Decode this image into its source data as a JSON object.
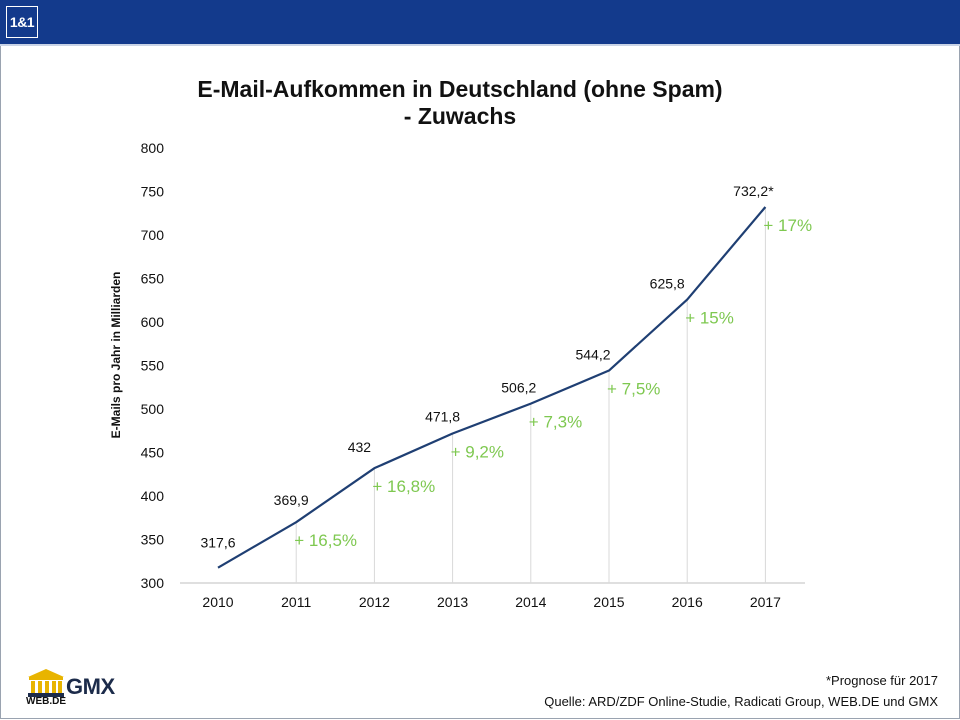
{
  "header": {
    "brand_logo_text": "1&1"
  },
  "chart_data": {
    "type": "line",
    "title": "E-Mail-Aufkommen in Deutschland (ohne Spam)",
    "subtitle": "- Zuwachs",
    "ylabel": "E-Mails pro Jahr in Milliarden",
    "xlabel": "",
    "ylim": [
      300,
      800
    ],
    "yticks": [
      300,
      350,
      400,
      450,
      500,
      550,
      600,
      650,
      700,
      750,
      800
    ],
    "categories": [
      "2010",
      "2011",
      "2012",
      "2013",
      "2014",
      "2015",
      "2016",
      "2017"
    ],
    "series": [
      {
        "values": [
          317.6,
          369.9,
          432,
          471.8,
          506.2,
          544.2,
          625.8,
          732.2
        ],
        "color": "#1f3f73"
      }
    ],
    "data_labels": [
      "317,6",
      "369,9",
      "432",
      "471,8",
      "506,2",
      "544,2",
      "625,8",
      "732,2*"
    ],
    "growth_labels": [
      "",
      "+ 16,5%",
      "+ 16,8%",
      "+ 9,2%",
      "+ 7,3%",
      "+ 7,5%",
      "+ 15%",
      "+ 17%"
    ],
    "growth_color": "#7ec850",
    "drop_lines": true,
    "grid": false
  },
  "footer": {
    "footnote": "*Prognose für 2017",
    "source": "Quelle: ARD/ZDF Online-Studie, Radicati Group, WEB.DE und GMX",
    "partner_gmx_text": "GMX",
    "partner_webde_text": "WEB.DE"
  },
  "colors": {
    "header_bar": "#133a8c",
    "line": "#1f3f73",
    "growth": "#7ec850"
  }
}
